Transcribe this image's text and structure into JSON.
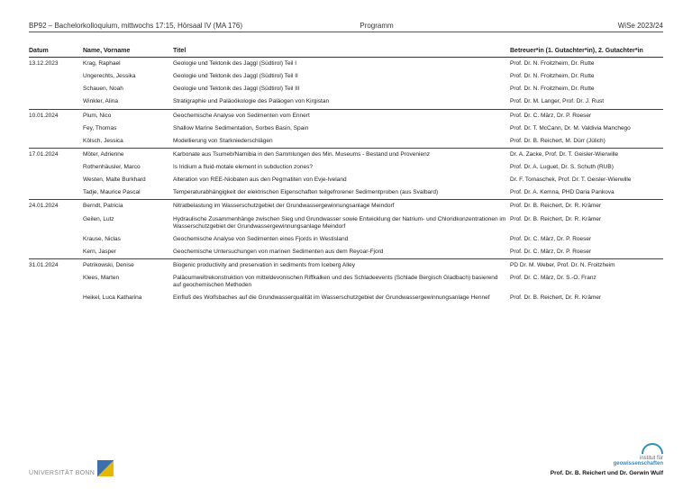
{
  "header": {
    "left": "BP92 – Bachelorkolloquium, mittwochs 17:15, Hörsaal IV (MA 176)",
    "mid": "Programm",
    "right": "WiSe 2023/24"
  },
  "columns": {
    "date": "Datum",
    "name": "Name, Vorname",
    "title": "Titel",
    "sup": "Betreuer*in (1. Gutachter*in), 2. Gutachter*in"
  },
  "groups": [
    {
      "date": "13.12.2023",
      "rows": [
        {
          "name": "Krag, Raphael",
          "title": "Geologie und Tektonik des Jaggl (Südtirol) Teil I",
          "sup": "Prof. Dr. N. Froitzheim, Dr. Rutte"
        },
        {
          "name": "Ungerechts, Jessika",
          "title": "Geologie und Tektonik des Jaggl (Südtirol) Teil II",
          "sup": "Prof. Dr. N. Froitzheim, Dr. Rutte"
        },
        {
          "name": "Schauen, Noah",
          "title": "Geologie und Tektonik des Jaggl (Südtirol) Teil III",
          "sup": "Prof. Dr. N. Froitzheim, Dr. Rutte"
        },
        {
          "name": "Winkler, Alina",
          "title": "Stratigraphie und Paläoökologie des Paläogen von Kirgistan",
          "sup": "Prof. Dr. M. Langer, Prof. Dr. J. Rust"
        }
      ]
    },
    {
      "date": "10.01.2024",
      "rows": [
        {
          "name": "Plum, Nico",
          "title": "Geochemische Analyse von Sedimenten vom Ennert",
          "sup": "Prof. Dr. C. März, Dr. P. Roeser"
        },
        {
          "name": "Fey, Thomas",
          "title": "Shallow Marine Sedimentation, Sorbes Basin, Spain",
          "sup": "Prof. Dr. T. McCann, Dr. M. Valdivia Manchego"
        },
        {
          "name": "Kölsch, Jessica",
          "title": "Modellierung von Starkniederschlägen",
          "sup": "Prof. Dr. B. Reichert, M. Dürr (Jülich)"
        }
      ]
    },
    {
      "date": "17.01.2024",
      "rows": [
        {
          "name": "Möter, Adrienne",
          "title": "Karbonate aus Tsumeb/Namibia in den Sammlungen des Min. Museums - Bestand und Provenienz",
          "sup": "Dr. A. Zacke, Prof. Dr. T. Geisler-Wierwille"
        },
        {
          "name": "Rothenhäusler, Marco",
          "title": "Is Iridium a fluid-motale element in subduction zones?",
          "sup": "Prof. Dr. A. Luguet, Dr. S. Schuth (RUB)"
        },
        {
          "name": "Westen, Malte Burkhard",
          "title": "Alteration von REE-Niobaten aus den Pegmatiten von Evje-Iveland",
          "sup": "Dr. F. Tomaschek, Prof. Dr. T. Geisler-Wierwille"
        },
        {
          "name": "Tadje, Maurice Pascal",
          "title": "Temperaturabhängigkeit der elektrischen Eigenschaften teilgefrorener Sedimentproben (aus Svalbard)",
          "sup": "Prof. Dr. A. Kemna, PHD Daria Pankova"
        }
      ]
    },
    {
      "date": "24.01.2024",
      "rows": [
        {
          "name": "Berndt, Patricia",
          "title": "Nitratbelastung im Wasserschutzgebiet der Grundwassergewinnungsanlage Meindorf",
          "sup": "Prof. Dr. B. Reichert, Dr. R. Krämer"
        },
        {
          "name": "Geilen, Lutz",
          "title": "Hydraulische Zusammenhänge zwischen Sieg und Grundwasser sowie Entwicklung der Natrium- und Chloridkonzentrationen im Wasserschutzgebiet der Grundwassergewinnungsanlage Meindorf",
          "sup": "Prof. Dr. B. Reichert, Dr. R. Krämer"
        },
        {
          "name": "Krause, Niclas",
          "title": "Geochemische Analyse von Sedimenten eines Fjords in Westisland",
          "sup": "Prof. Dr. C. März, Dr. P. Roeser"
        },
        {
          "name": "Kern, Jasper",
          "title": "Geochemische Untersuchungen von marinen Sedimenten aus dem Reyoar-Fjord",
          "sup": "Prof. Dr. C. März, Dr. P. Roeser"
        }
      ]
    },
    {
      "date": "31.01.2024",
      "rows": [
        {
          "name": "Petrikowski, Denise",
          "title": "Biogenic productivity and preservation in sediments from Iceberg Alley",
          "sup": "PD Dr. M. Weber, Prof. Dr. N. Froitzheim"
        },
        {
          "name": "Klees, Marten",
          "title": "Paläoumweltrekonstruktion von mitteldevonischen Riffkalken und des Schladeevents (Schlade Bergisch Gladbach) basierend auf geochemischen Methoden",
          "sup": "Prof. Dr. C. März, Dr. S.-O. Franz"
        },
        {
          "name": "Heikel, Luca Katharina",
          "title": "Einfluß des Wolfsbaches auf die Grundwasserqualität im Wasserschutzgebiet der Grundwassergewinnungsanlage Hennef",
          "sup": "Prof. Dr. B. Reichert, Dr. R. Krämer"
        }
      ]
    }
  ],
  "footer": {
    "uni": "UNIVERSITÄT BONN",
    "inst1": "institut für",
    "inst2": "geowissenschaften",
    "byline": "Prof. Dr. B. Reichert und Dr. Gerwin Wulf"
  }
}
